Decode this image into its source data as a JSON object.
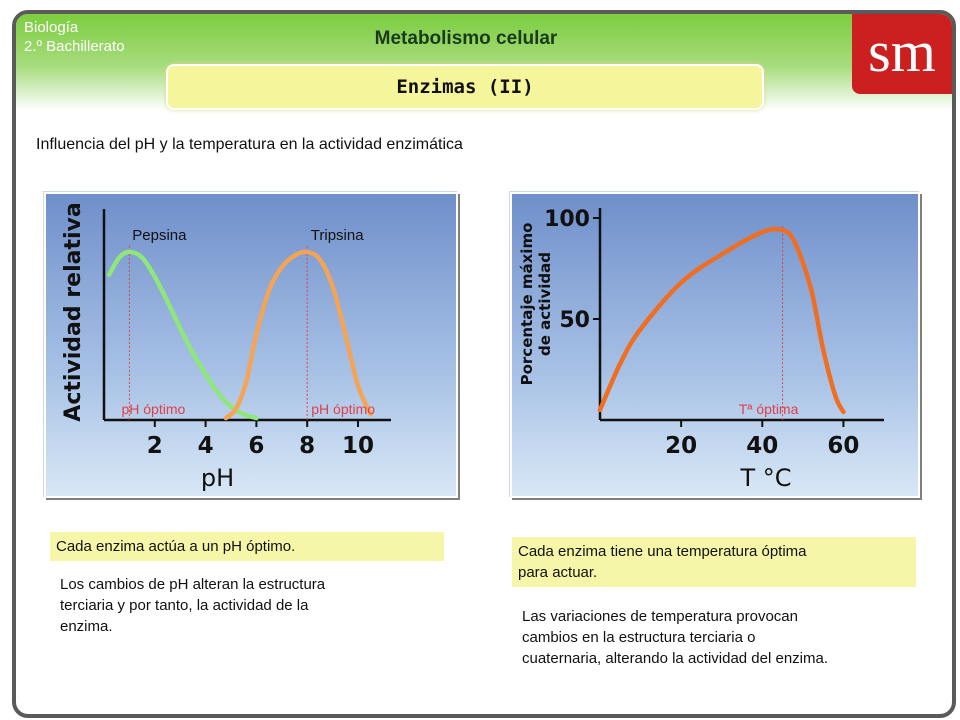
{
  "header": {
    "subject_line1": "Biología",
    "subject_line2": "2.º Bachillerato",
    "title": "Metabolismo celular",
    "section": "Enzimas (II)",
    "logo": "sm"
  },
  "intro": "Influencia del pH y la temperatura en la actividad enzimática",
  "colors": {
    "pepsina": "#8fe67a",
    "tripsina": "#f5a455",
    "temperatura": "#ef6e22",
    "marker": "#e0404a"
  },
  "chart_data": [
    {
      "type": "line",
      "xlabel": "pH",
      "ylabel": "Actividad relativa",
      "xlim": [
        0,
        11.3
      ],
      "ylim": [
        0,
        100
      ],
      "xticks": [
        "2",
        "4",
        "6",
        "8",
        "10"
      ],
      "series": [
        {
          "name": "Pepsina",
          "x": [
            0.2,
            0.6,
            1.0,
            1.5,
            2.0,
            2.5,
            3.0,
            3.5,
            4.0,
            4.5,
            5.0,
            5.5,
            6.0
          ],
          "y": [
            76,
            85,
            88,
            85,
            75,
            62,
            48,
            35,
            24,
            14,
            7,
            3,
            1
          ]
        },
        {
          "name": "Tripsina",
          "x": [
            4.8,
            5.2,
            5.6,
            6.0,
            6.5,
            7.0,
            7.5,
            8.0,
            8.5,
            9.0,
            9.5,
            10.0,
            10.5
          ],
          "y": [
            1,
            6,
            20,
            45,
            68,
            80,
            86,
            88,
            84,
            70,
            45,
            18,
            3
          ]
        }
      ],
      "annotations": [
        {
          "text": "pH óptimo",
          "x": 1.0
        },
        {
          "text": "pH óptimo",
          "x": 8.0
        }
      ]
    },
    {
      "type": "line",
      "xlabel": "T °C",
      "ylabel": "Porcentaje máximo de actividad",
      "xlim": [
        0,
        70
      ],
      "ylim": [
        0,
        100
      ],
      "xticks": [
        "20",
        "40",
        "60"
      ],
      "yticks": [
        "50",
        "100"
      ],
      "series": [
        {
          "name": "",
          "x": [
            0,
            5,
            10,
            20,
            30,
            40,
            45,
            48,
            52,
            55,
            58,
            60
          ],
          "y": [
            5,
            28,
            45,
            68,
            82,
            93,
            94,
            88,
            65,
            35,
            12,
            4
          ]
        }
      ],
      "annotations": [
        {
          "text": "Tª óptima",
          "x": 45
        }
      ]
    }
  ],
  "notes": {
    "ph_summary": "Cada enzima actúa a un pH óptimo.",
    "ph_para_l1": "Los cambios de pH alteran la estructura",
    "ph_para_l2": "terciaria y por tanto, la actividad de la",
    "ph_para_l3": "enzima.",
    "temp_summary_l1": "Cada enzima tiene una temperatura óptima",
    "temp_summary_l2": "para actuar.",
    "temp_para_l1": "Las variaciones de temperatura provocan",
    "temp_para_l2": "cambios en la estructura terciaria o",
    "temp_para_l3": "cuaternaria, alterando la actividad del enzima."
  }
}
